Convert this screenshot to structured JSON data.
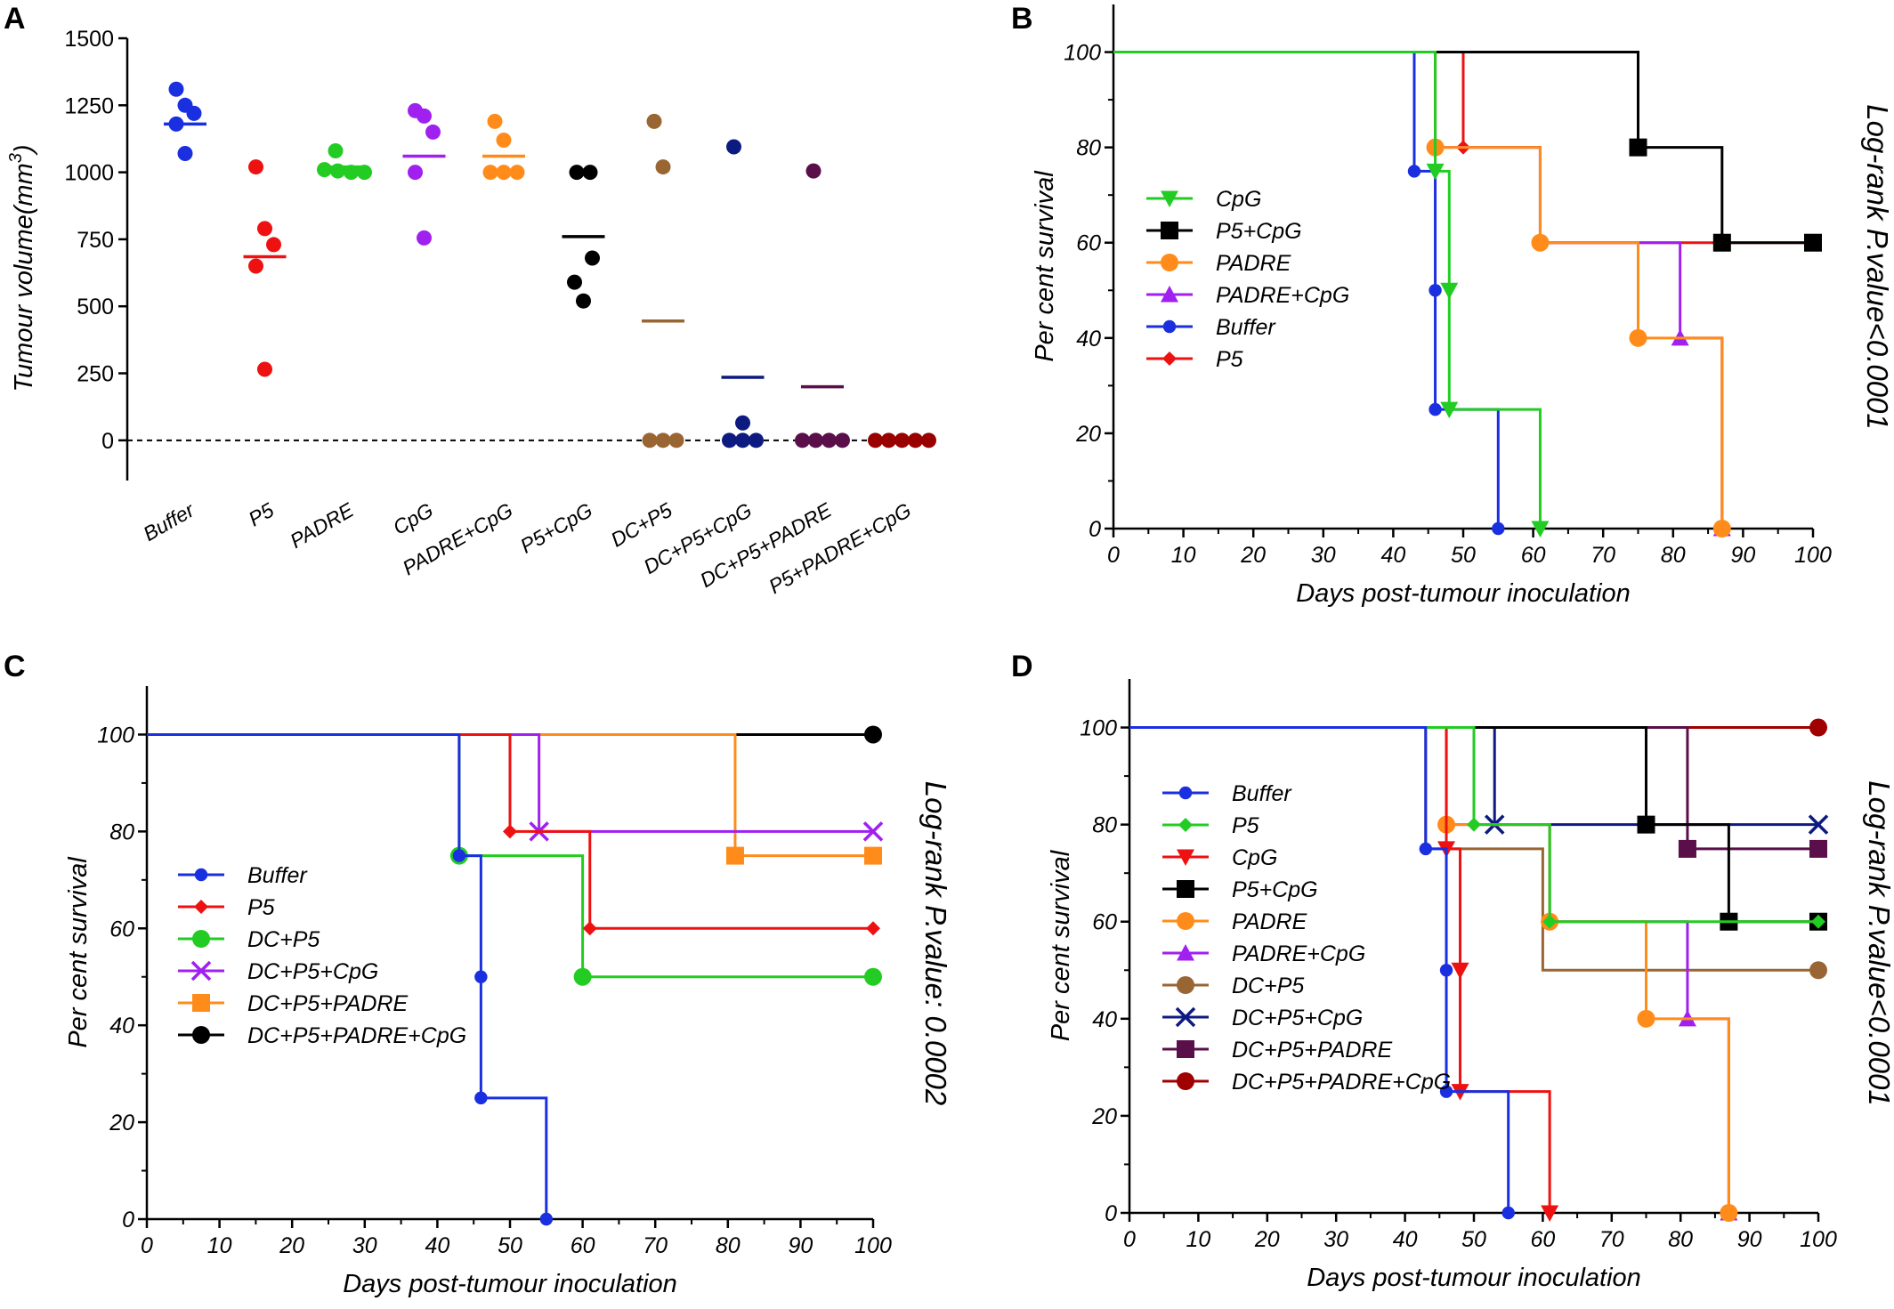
{
  "colors": {
    "Buffer": "#1a2fe0",
    "P5": "#ee1111",
    "PADRE": "#ff8c1a",
    "CpG": "#22cc22",
    "PADRE+CpG": "#a020f0",
    "P5+CpG": "#000000",
    "DC+P5": "#996633",
    "DC+P5+CpG": "#0d1a80",
    "DC+P5+PADRE": "#5a0f4a",
    "P5+PADRE+CpG": "#990000",
    "DC+P5+PADRE+CpG": "#8b0000",
    "CpG_C": "#22cc22",
    "DC+P5_C": "#22cc22",
    "DC+P5+CpG_C": "#a020f0",
    "DC+P5+PADRE_C": "#ff8c1a",
    "DC+P5+PADRE+CpG_C": "#000000",
    "DC+P5+PADRE+CpG_D": "#a00000"
  },
  "chart_data": [
    {
      "panel": "A",
      "type": "scatter",
      "ylabel": "Tumour volume(mm",
      "ylabel_sup": "3",
      "ylabel_end": ")",
      "ylim": [
        -150,
        1500
      ],
      "yticks": [
        "0",
        "250",
        "500",
        "750",
        "1000",
        "1250",
        "1500"
      ],
      "yticks_values": [
        0,
        250,
        500,
        750,
        1000,
        1250,
        1500
      ],
      "reference_line": 0,
      "categories": [
        "Buffer",
        "P5",
        "PADRE",
        "CpG",
        "PADRE+CpG",
        "P5+CpG",
        "DC+P5",
        "DC+P5+CpG",
        "DC+P5+PADRE",
        "P5+PADRE+CpG"
      ],
      "series": [
        {
          "category": "Buffer",
          "color": "#1a2fe0",
          "points": [
            1310,
            1250,
            1220,
            1180,
            1070
          ],
          "mean": 1180
        },
        {
          "category": "P5",
          "color": "#ee1111",
          "points": [
            1020,
            790,
            730,
            650,
            265
          ],
          "mean": 685
        },
        {
          "category": "PADRE",
          "color": "#22cc22",
          "points": [
            1080,
            1010,
            1005,
            1000,
            1000
          ],
          "mean": 1020
        },
        {
          "category": "CpG",
          "color": "#a020f0",
          "points": [
            1230,
            1210,
            1150,
            1000,
            755
          ],
          "mean": 1060
        },
        {
          "category": "PADRE+CpG",
          "color": "#ff8c1a",
          "points": [
            1190,
            1120,
            1000,
            1000,
            1000
          ],
          "mean": 1060
        },
        {
          "category": "P5+CpG",
          "color": "#000000",
          "points": [
            1000,
            1000,
            680,
            590,
            520
          ],
          "mean": 760
        },
        {
          "category": "DC+P5",
          "color": "#996633",
          "points": [
            1190,
            1020,
            0,
            0,
            0
          ],
          "mean": 445
        },
        {
          "category": "DC+P5+CpG",
          "color": "#0d1a80",
          "points": [
            1095,
            65,
            0,
            0,
            0
          ],
          "mean": 235
        },
        {
          "category": "DC+P5+PADRE",
          "color": "#5a0f4a",
          "points": [
            1005,
            0,
            0,
            0,
            0
          ],
          "mean": 200
        },
        {
          "category": "P5+PADRE+CpG",
          "color": "#990000",
          "points": [
            0,
            0,
            0,
            0,
            0
          ],
          "mean": 0
        }
      ]
    },
    {
      "panel": "B",
      "type": "line",
      "subtype": "step",
      "xlabel": "Days post-tumour inoculation",
      "ylabel": "Per cent survival",
      "pvalue_text": "Log-rank P.value<0.0001",
      "xlim": [
        0,
        100
      ],
      "ylim": [
        0,
        110
      ],
      "xticks": [
        "0",
        "10",
        "20",
        "30",
        "40",
        "50",
        "60",
        "70",
        "80",
        "90",
        "100"
      ],
      "yticks": [
        "0",
        "20",
        "40",
        "60",
        "80",
        "100"
      ],
      "series": [
        {
          "name": "CpG",
          "color": "#22cc22",
          "marker": "tri-down",
          "steps": [
            [
              0,
              100
            ],
            [
              46,
              75
            ],
            [
              48,
              50
            ],
            [
              48,
              25
            ],
            [
              61,
              0
            ]
          ],
          "marks": [
            [
              46,
              75
            ],
            [
              48,
              50
            ],
            [
              48,
              25
            ],
            [
              61,
              0
            ]
          ]
        },
        {
          "name": "P5+CpG",
          "color": "#000000",
          "marker": "square",
          "steps": [
            [
              0,
              100
            ],
            [
              75,
              80
            ],
            [
              87,
              60
            ],
            [
              100,
              60
            ]
          ],
          "marks": [
            [
              75,
              80
            ],
            [
              87,
              60
            ],
            [
              100,
              60
            ]
          ]
        },
        {
          "name": "PADRE",
          "color": "#ff8c1a",
          "marker": "circle",
          "steps": [
            [
              0,
              100
            ],
            [
              46,
              80
            ],
            [
              61,
              60
            ],
            [
              75,
              40
            ],
            [
              87,
              0
            ]
          ],
          "marks": [
            [
              46,
              80
            ],
            [
              61,
              60
            ],
            [
              75,
              40
            ],
            [
              87,
              0
            ]
          ]
        },
        {
          "name": "PADRE+CpG",
          "color": "#a020f0",
          "marker": "tri-up",
          "steps": [
            [
              0,
              100
            ],
            [
              46,
              80
            ],
            [
              61,
              60
            ],
            [
              81,
              40
            ],
            [
              87,
              0
            ]
          ],
          "marks": [
            [
              81,
              40
            ],
            [
              87,
              0
            ]
          ]
        },
        {
          "name": "Buffer",
          "color": "#1a2fe0",
          "marker": "circle-s",
          "steps": [
            [
              0,
              100
            ],
            [
              43,
              75
            ],
            [
              46,
              50
            ],
            [
              46,
              25
            ],
            [
              55,
              0
            ]
          ],
          "marks": [
            [
              43,
              75
            ],
            [
              46,
              50
            ],
            [
              46,
              25
            ],
            [
              55,
              0
            ]
          ]
        },
        {
          "name": "P5",
          "color": "#ee1111",
          "marker": "diamond",
          "steps": [
            [
              0,
              100
            ],
            [
              50,
              80
            ],
            [
              61,
              60
            ],
            [
              100,
              60
            ]
          ],
          "marks": [
            [
              50,
              80
            ],
            [
              61,
              60
            ],
            [
              100,
              60
            ]
          ]
        }
      ]
    },
    {
      "panel": "C",
      "type": "line",
      "subtype": "step",
      "xlabel": "Days post-tumour inoculation",
      "ylabel": "Per cent survival",
      "pvalue_text": "Log-rank P.value: 0.0002",
      "xlim": [
        0,
        100
      ],
      "ylim": [
        0,
        110
      ],
      "xticks": [
        "0",
        "10",
        "20",
        "30",
        "40",
        "50",
        "60",
        "70",
        "80",
        "90",
        "100"
      ],
      "yticks": [
        "0",
        "20",
        "40",
        "60",
        "80",
        "100"
      ],
      "series": [
        {
          "name": "Buffer",
          "color": "#1a2fe0",
          "marker": "circle-s",
          "steps": [
            [
              0,
              100
            ],
            [
              43,
              75
            ],
            [
              46,
              50
            ],
            [
              46,
              25
            ],
            [
              55,
              0
            ]
          ],
          "marks": [
            [
              43,
              75
            ],
            [
              46,
              50
            ],
            [
              46,
              25
            ],
            [
              55,
              0
            ]
          ]
        },
        {
          "name": "P5",
          "color": "#ee1111",
          "marker": "diamond",
          "steps": [
            [
              0,
              100
            ],
            [
              50,
              80
            ],
            [
              61,
              60
            ],
            [
              100,
              60
            ]
          ],
          "marks": [
            [
              50,
              80
            ],
            [
              61,
              60
            ],
            [
              100,
              60
            ]
          ]
        },
        {
          "name": "DC+P5",
          "color": "#22cc22",
          "marker": "circle",
          "steps": [
            [
              0,
              100
            ],
            [
              43,
              75
            ],
            [
              60,
              50
            ],
            [
              100,
              50
            ]
          ],
          "marks": [
            [
              43,
              75
            ],
            [
              60,
              50
            ],
            [
              100,
              50
            ]
          ]
        },
        {
          "name": "DC+P5+CpG",
          "color": "#a020f0",
          "marker": "x",
          "steps": [
            [
              0,
              100
            ],
            [
              54,
              80
            ],
            [
              100,
              80
            ]
          ],
          "marks": [
            [
              54,
              80
            ],
            [
              100,
              80
            ]
          ]
        },
        {
          "name": "DC+P5+PADRE",
          "color": "#ff8c1a",
          "marker": "square",
          "steps": [
            [
              0,
              100
            ],
            [
              81,
              75
            ],
            [
              100,
              75
            ]
          ],
          "marks": [
            [
              81,
              75
            ],
            [
              100,
              75
            ]
          ]
        },
        {
          "name": "DC+P5+PADRE+CpG",
          "color": "#000000",
          "marker": "circle",
          "steps": [
            [
              0,
              100
            ],
            [
              100,
              100
            ]
          ],
          "marks": [
            [
              100,
              100
            ]
          ]
        }
      ]
    },
    {
      "panel": "D",
      "type": "line",
      "subtype": "step",
      "xlabel": "Days post-tumour inoculation",
      "ylabel": "Per cent survival",
      "pvalue_text": "Log-rank P.value<0.0001",
      "xlim": [
        0,
        100
      ],
      "ylim": [
        0,
        110
      ],
      "xticks": [
        "0",
        "10",
        "20",
        "30",
        "40",
        "50",
        "60",
        "70",
        "80",
        "90",
        "100"
      ],
      "yticks": [
        "0",
        "20",
        "40",
        "60",
        "80",
        "100"
      ],
      "series": [
        {
          "name": "Buffer",
          "color": "#1a2fe0",
          "marker": "circle-s",
          "steps": [
            [
              0,
              100
            ],
            [
              43,
              75
            ],
            [
              46,
              50
            ],
            [
              46,
              25
            ],
            [
              55,
              0
            ]
          ],
          "marks": [
            [
              43,
              75
            ],
            [
              46,
              50
            ],
            [
              46,
              25
            ],
            [
              55,
              0
            ]
          ]
        },
        {
          "name": "P5",
          "color": "#22cc22",
          "marker": "diamond",
          "steps": [
            [
              0,
              100
            ],
            [
              50,
              80
            ],
            [
              61,
              60
            ],
            [
              100,
              60
            ]
          ],
          "marks": [
            [
              50,
              80
            ],
            [
              61,
              60
            ],
            [
              100,
              60
            ]
          ]
        },
        {
          "name": "CpG",
          "color": "#ee1111",
          "marker": "tri-down",
          "steps": [
            [
              0,
              100
            ],
            [
              46,
              75
            ],
            [
              48,
              50
            ],
            [
              48,
              25
            ],
            [
              61,
              0
            ]
          ],
          "marks": [
            [
              46,
              75
            ],
            [
              48,
              50
            ],
            [
              48,
              25
            ],
            [
              61,
              0
            ]
          ]
        },
        {
          "name": "P5+CpG",
          "color": "#000000",
          "marker": "square",
          "steps": [
            [
              0,
              100
            ],
            [
              75,
              80
            ],
            [
              87,
              60
            ],
            [
              100,
              60
            ]
          ],
          "marks": [
            [
              75,
              80
            ],
            [
              87,
              60
            ],
            [
              100,
              60
            ]
          ]
        },
        {
          "name": "PADRE",
          "color": "#ff8c1a",
          "marker": "circle",
          "steps": [
            [
              0,
              100
            ],
            [
              46,
              80
            ],
            [
              61,
              60
            ],
            [
              75,
              40
            ],
            [
              87,
              0
            ]
          ],
          "marks": [
            [
              46,
              80
            ],
            [
              61,
              60
            ],
            [
              75,
              40
            ],
            [
              87,
              0
            ]
          ]
        },
        {
          "name": "PADRE+CpG",
          "color": "#a020f0",
          "marker": "tri-up",
          "steps": [
            [
              0,
              100
            ],
            [
              46,
              80
            ],
            [
              61,
              60
            ],
            [
              81,
              40
            ],
            [
              87,
              0
            ]
          ],
          "marks": [
            [
              81,
              40
            ],
            [
              87,
              0
            ]
          ]
        },
        {
          "name": "DC+P5",
          "color": "#996633",
          "marker": "circle",
          "steps": [
            [
              0,
              100
            ],
            [
              43,
              75
            ],
            [
              60,
              50
            ],
            [
              100,
              50
            ]
          ],
          "marks": [
            [
              100,
              50
            ]
          ]
        },
        {
          "name": "DC+P5+CpG",
          "color": "#0d1a80",
          "marker": "x",
          "steps": [
            [
              0,
              100
            ],
            [
              53,
              80
            ],
            [
              100,
              80
            ]
          ],
          "marks": [
            [
              53,
              80
            ],
            [
              100,
              80
            ]
          ]
        },
        {
          "name": "DC+P5+PADRE",
          "color": "#5a0f4a",
          "marker": "square",
          "steps": [
            [
              0,
              100
            ],
            [
              81,
              75
            ],
            [
              100,
              75
            ]
          ],
          "marks": [
            [
              81,
              75
            ],
            [
              100,
              75
            ]
          ]
        },
        {
          "name": "DC+P5+PADRE+CpG",
          "color": "#a00000",
          "marker": "circle",
          "steps": [
            [
              0,
              100
            ],
            [
              100,
              100
            ]
          ],
          "marks": [
            [
              100,
              100
            ]
          ]
        }
      ]
    }
  ]
}
